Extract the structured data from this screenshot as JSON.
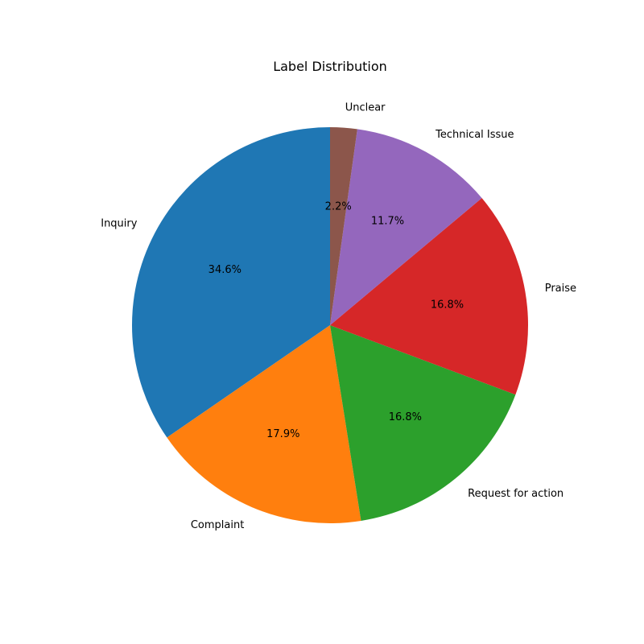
{
  "chart_data": {
    "type": "pie",
    "title": "Label Distribution",
    "start_angle_deg": 90,
    "direction": "counterclockwise",
    "slices": [
      {
        "label": "Inquiry",
        "value": 34.6,
        "display": "34.6%",
        "color": "#1f77b4"
      },
      {
        "label": "Complaint",
        "value": 17.9,
        "display": "17.9%",
        "color": "#ff7f0e"
      },
      {
        "label": "Request for action",
        "value": 16.8,
        "display": "16.8%",
        "color": "#2ca02c"
      },
      {
        "label": "Praise",
        "value": 16.8,
        "display": "16.8%",
        "color": "#d62728"
      },
      {
        "label": "Technical Issue",
        "value": 11.7,
        "display": "11.7%",
        "color": "#9467bd"
      },
      {
        "label": "Unclear",
        "value": 2.2,
        "display": "2.2%",
        "color": "#8c564b"
      }
    ]
  }
}
